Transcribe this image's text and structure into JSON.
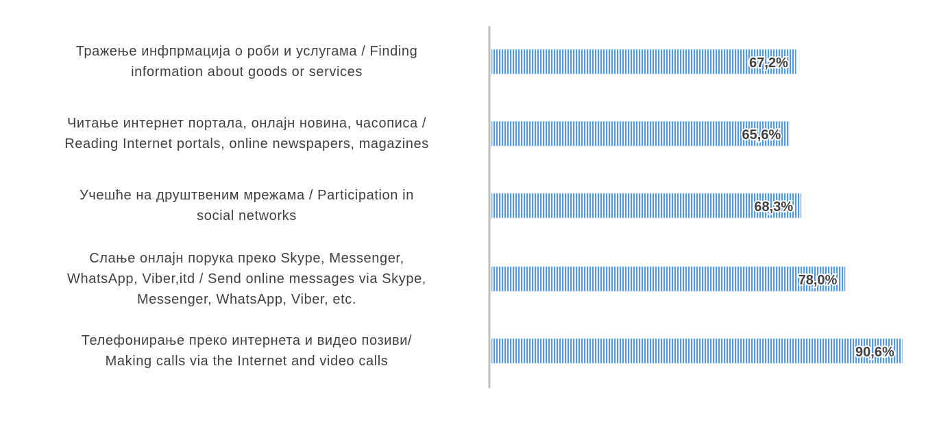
{
  "chart_data": {
    "type": "bar",
    "orientation": "horizontal",
    "title": "",
    "xlabel": "",
    "ylabel": "",
    "categories": [
      "Тражење инфпрмација о роби и услугама / Finding\ninformation about goods or services",
      "Читање интернет портала, онлајн новина, часописа /\nReading Internet portals, online newspapers, magazines",
      "Учешће на друштвеним мрежама / Participation in\nsocial networks",
      "Слање онлајн порука преко Skype, Messenger,\nWhatsApp, Viber,itd / Send online messages via Skype,\nMessenger, WhatsApp, Viber, etc.",
      "Телефонирање преко интернета и видео позиви/\nMaking calls via the Internet and video calls"
    ],
    "values": [
      67.2,
      65.6,
      68.3,
      78.0,
      90.6
    ],
    "data_labels": [
      "67,2%",
      "65,6%",
      "68,3%",
      "78,0%",
      "90,6%"
    ],
    "xlim": [
      0,
      100
    ],
    "grid": false,
    "legend": "none",
    "colors": {
      "bar_fill": "#5b9bd5",
      "bar_stripe": "#ffffff",
      "axis": "#bfbfbf",
      "label_text": "#404040",
      "value_text": "#404040"
    }
  }
}
